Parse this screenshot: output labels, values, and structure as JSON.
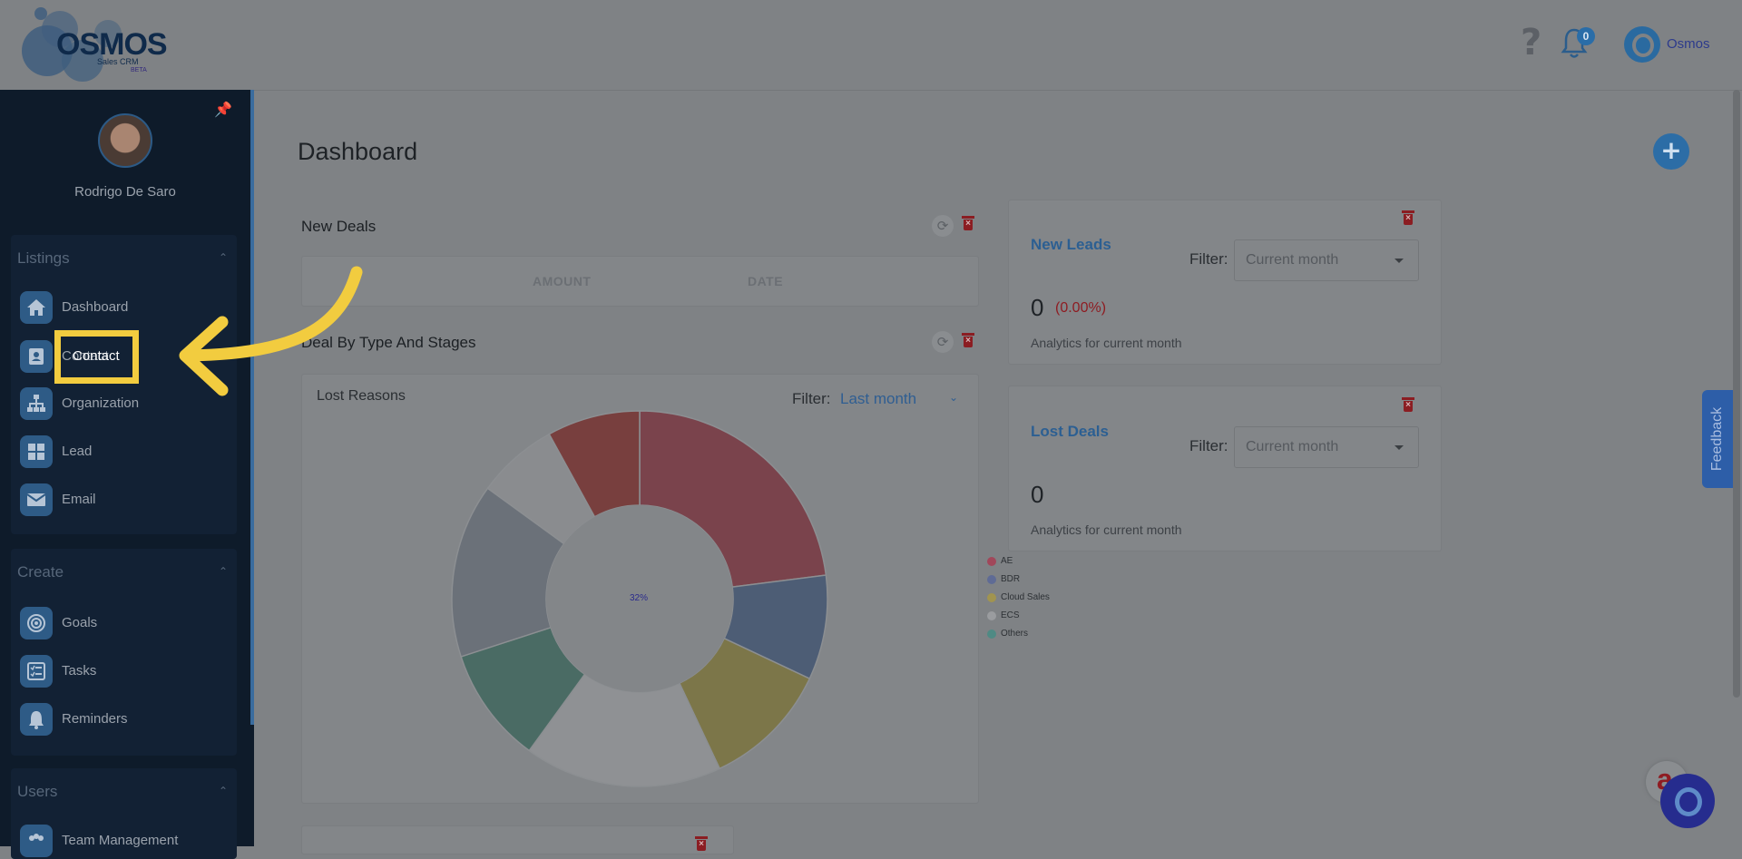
{
  "header": {
    "logo_word": "OSMOS",
    "logo_sub": "Sales CRM",
    "logo_beta": "BETA",
    "help_glyph": "?",
    "notification_count": "0",
    "user_name": "Osmos"
  },
  "sidebar": {
    "user_name": "Rodrigo De Saro",
    "sections": [
      {
        "title": "Listings",
        "items": [
          {
            "label": "Dashboard",
            "icon": "home-icon"
          },
          {
            "label": "Contact",
            "icon": "contact-card-icon"
          },
          {
            "label": "Organization",
            "icon": "org-chart-icon"
          },
          {
            "label": "Lead",
            "icon": "grid-icon"
          },
          {
            "label": "Email",
            "icon": "envelope-icon"
          }
        ]
      },
      {
        "title": "Create",
        "items": [
          {
            "label": "Goals",
            "icon": "target-icon"
          },
          {
            "label": "Tasks",
            "icon": "checklist-icon"
          },
          {
            "label": "Reminders",
            "icon": "bell-icon"
          }
        ]
      },
      {
        "title": "Users",
        "items": [
          {
            "label": "Team Management",
            "icon": "team-icon"
          }
        ]
      }
    ]
  },
  "main": {
    "page_title": "Dashboard",
    "fab_label": "+",
    "new_deals": {
      "title": "New Deals",
      "columns": [
        "AMOUNT",
        "DATE"
      ]
    },
    "deal_by_type": {
      "title": "Deal By Type And Stages",
      "subtitle": "Lost Reasons",
      "filter_label": "Filter:",
      "filter_value": "Last month"
    },
    "new_leads": {
      "title": "New Leads",
      "filter_label": "Filter:",
      "filter_value": "Current month",
      "count": "0",
      "change": "(0.00%)",
      "caption": "Analytics for current month"
    },
    "lost_deals": {
      "title": "Lost Deals",
      "filter_label": "Filter:",
      "filter_value": "Current month",
      "count": "0",
      "caption": "Analytics for current month"
    }
  },
  "chart_data": {
    "type": "pie",
    "donut": true,
    "center_label": "32%",
    "title": "Lost Reasons",
    "slices": [
      {
        "value": 23,
        "color": "#7a434c"
      },
      {
        "value": 9,
        "color": "#4d5d75"
      },
      {
        "value": 11,
        "color": "#7c7649"
      },
      {
        "value": 17,
        "color": "#8f9194"
      },
      {
        "value": 10,
        "color": "#4a6b64"
      },
      {
        "value": 15,
        "color": "#6b7179"
      },
      {
        "value": 7,
        "color": "#8a8c8f"
      },
      {
        "value": 8,
        "color": "#783f3e"
      }
    ],
    "legend": [
      {
        "name": "AE",
        "color": "#a1475a"
      },
      {
        "name": "BDR",
        "color": "#5f6b95"
      },
      {
        "name": "Cloud Sales",
        "color": "#a1944f"
      },
      {
        "name": "ECS",
        "color": "#9a9c9f"
      },
      {
        "name": "Others",
        "color": "#4f8a84"
      }
    ]
  },
  "feedback_label": "Feedback",
  "overlay": {
    "highlight_label": "Contact"
  }
}
